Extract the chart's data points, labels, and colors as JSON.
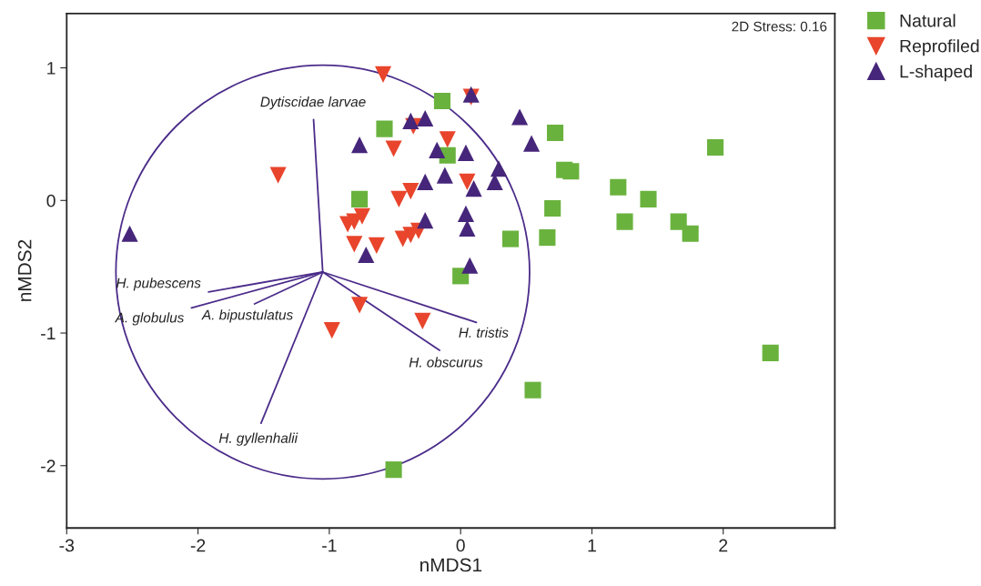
{
  "chart_data": {
    "type": "scatter",
    "xlabel": "nMDS1",
    "ylabel": "nMDS2",
    "xlim": [
      -3,
      2.85
    ],
    "ylim": [
      -2.47,
      1.41
    ],
    "xticks": [
      -3,
      -2,
      -1,
      0,
      1,
      2
    ],
    "yticks": [
      -2,
      -1,
      0,
      1
    ],
    "grid": false,
    "legend": "top right",
    "series": [
      {
        "name": "Natural",
        "color": "#6ab23e",
        "marker": "square",
        "x": [
          -0.14,
          -0.58,
          0.72,
          -0.1,
          0.79,
          0.84,
          1.94,
          1.2,
          1.43,
          -0.77,
          0.7,
          1.25,
          1.66,
          1.75,
          0.38,
          0.66,
          0.0,
          2.36,
          0.55,
          -0.51
        ],
        "values": [
          0.75,
          0.54,
          0.51,
          0.34,
          0.23,
          0.22,
          0.4,
          0.1,
          0.01,
          0.01,
          -0.06,
          -0.16,
          -0.16,
          -0.25,
          -0.29,
          -0.28,
          -0.57,
          -1.15,
          -1.43,
          -2.03
        ]
      },
      {
        "name": "Reprofiled",
        "color": "#e8452c",
        "marker": "triangle_down",
        "x": [
          -0.59,
          0.08,
          -1.39,
          -0.51,
          -0.36,
          -0.1,
          0.05,
          -0.47,
          -0.38,
          -0.86,
          -0.81,
          -0.75,
          -0.81,
          -0.64,
          -0.44,
          -0.38,
          -0.32,
          -0.77,
          -0.29,
          -0.98
        ],
        "values": [
          0.95,
          0.78,
          0.19,
          0.39,
          0.56,
          0.46,
          0.14,
          0.01,
          0.07,
          -0.18,
          -0.16,
          -0.12,
          -0.33,
          -0.34,
          -0.29,
          -0.26,
          -0.23,
          -0.79,
          -0.91,
          -0.98
        ]
      },
      {
        "name": "L-shaped",
        "color": "#46267a",
        "marker": "triangle",
        "x": [
          -2.52,
          0.08,
          -0.38,
          -0.27,
          -0.77,
          -0.18,
          0.04,
          -0.12,
          -0.27,
          0.29,
          0.26,
          0.1,
          0.45,
          0.54,
          -0.27,
          0.04,
          0.05,
          -0.72,
          0.07
        ],
        "values": [
          -0.25,
          0.8,
          0.6,
          0.62,
          0.42,
          0.38,
          0.36,
          0.19,
          0.14,
          0.24,
          0.14,
          0.09,
          0.63,
          0.43,
          -0.15,
          -0.1,
          -0.21,
          -0.41,
          -0.49
        ]
      },
      {
        "type": "line",
        "name": "Dytiscidae larvae",
        "color": "#4b2c8a",
        "x": [
          -1.05,
          -1.12
        ],
        "values": [
          -0.54,
          0.61
        ]
      },
      {
        "type": "line",
        "name": "H. pubescens",
        "color": "#4b2c8a",
        "x": [
          -1.05,
          -1.92
        ],
        "values": [
          -0.54,
          -0.69
        ]
      },
      {
        "type": "line",
        "name": "A. globulus",
        "color": "#4b2c8a",
        "x": [
          -1.05,
          -2.05
        ],
        "values": [
          -0.54,
          -0.81
        ]
      },
      {
        "type": "line",
        "name": "A. bipustulatus",
        "color": "#4b2c8a",
        "x": [
          -1.05,
          -1.57
        ],
        "values": [
          -0.54,
          -0.78
        ]
      },
      {
        "type": "line",
        "name": "H. gyllenhalii",
        "color": "#4b2c8a",
        "x": [
          -1.05,
          -1.52
        ],
        "values": [
          -0.54,
          -1.68
        ]
      },
      {
        "type": "line",
        "name": "H. tristis",
        "color": "#4b2c8a",
        "x": [
          -1.05,
          0.12
        ],
        "values": [
          -0.54,
          -0.92
        ]
      },
      {
        "type": "line",
        "name": "H. obscurus",
        "color": "#4b2c8a",
        "x": [
          -1.05,
          -0.16
        ],
        "values": [
          -0.54,
          -1.13
        ]
      }
    ],
    "annotations": [
      "2D Stress: 0.16"
    ]
  }
}
